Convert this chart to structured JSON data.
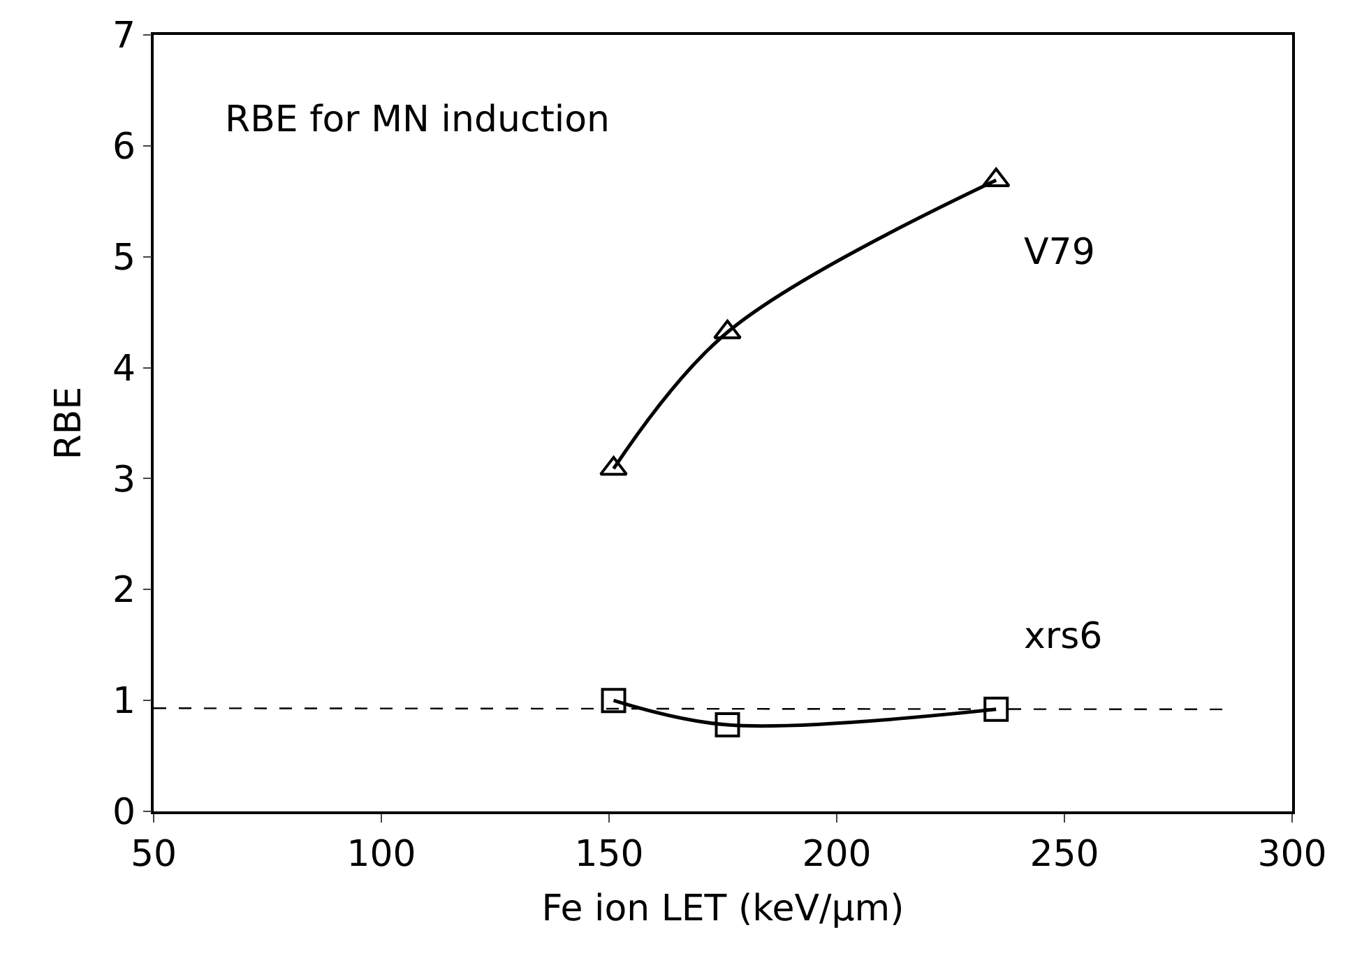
{
  "chart_data": {
    "type": "line",
    "xlabel": "Fe ion LET (keV/µm)",
    "ylabel": "RBE",
    "xlim": [
      50,
      300
    ],
    "xticks": [
      50,
      100,
      150,
      200,
      250,
      300
    ],
    "ylim": [
      0,
      7
    ],
    "yticks": [
      0,
      1,
      2,
      3,
      4,
      5,
      6,
      7
    ],
    "annotations": [
      "RBE for MN induction"
    ],
    "series": [
      {
        "name": "V79",
        "color": "#000000",
        "marker": "triangle",
        "line_style": "solid",
        "x": [
          151,
          176,
          235
        ],
        "values": [
          3.09,
          4.32,
          5.69
        ]
      },
      {
        "name": "xrs6",
        "color": "#000000",
        "marker": "square",
        "line_style": "solid",
        "x": [
          151,
          176,
          235
        ],
        "values": [
          1.0,
          0.78,
          0.92
        ]
      },
      {
        "color": "#000000",
        "marker": "none",
        "line_style": "dashed",
        "x": [
          50,
          285
        ],
        "values": [
          0.93,
          0.92
        ]
      }
    ]
  }
}
